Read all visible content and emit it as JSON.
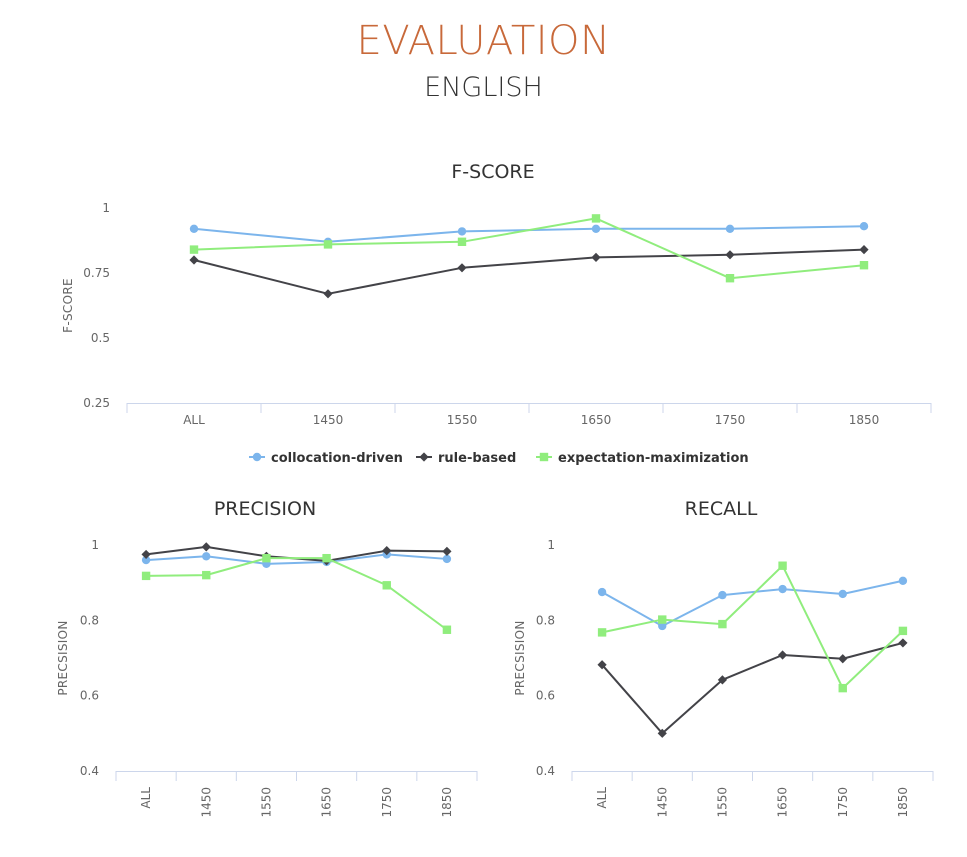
{
  "header": {
    "title": "EVALUATION",
    "subtitle": "ENGLISH"
  },
  "legend": [
    {
      "name": "collocation-driven",
      "color": "#7cb5ec",
      "marker": "circle"
    },
    {
      "name": "rule-based",
      "color": "#434348",
      "marker": "diamond"
    },
    {
      "name": "expectation-maximization",
      "color": "#90ed7d",
      "marker": "square"
    }
  ],
  "chart_data": [
    {
      "type": "line",
      "title": "F-SCORE",
      "ylabel": "F-SCORE",
      "xlabel": "",
      "categories": [
        "ALL",
        "1450",
        "1550",
        "1650",
        "1750",
        "1850"
      ],
      "ylim": [
        0.25,
        1
      ],
      "yticks": [
        0.25,
        0.5,
        0.75,
        1
      ],
      "ytick_labels": [
        "0.25",
        "0.5",
        "0.75",
        "1"
      ],
      "grid": false,
      "legend": "bottom",
      "series": [
        {
          "name": "collocation-driven",
          "values": [
            0.92,
            0.87,
            0.91,
            0.92,
            0.92,
            0.93
          ]
        },
        {
          "name": "rule-based",
          "values": [
            0.8,
            0.67,
            0.77,
            0.81,
            0.82,
            0.84
          ]
        },
        {
          "name": "expectation-maximization",
          "values": [
            0.84,
            0.86,
            0.87,
            0.96,
            0.73,
            0.78
          ]
        }
      ]
    },
    {
      "type": "line",
      "title": "PRECISION",
      "ylabel": "PRECSISION",
      "xlabel": "",
      "categories": [
        "ALL",
        "1450",
        "1550",
        "1650",
        "1750",
        "1850"
      ],
      "ylim": [
        0.4,
        1
      ],
      "yticks": [
        0.4,
        0.6,
        0.8,
        1
      ],
      "ytick_labels": [
        "0.4",
        "0.6",
        "0.8",
        "1"
      ],
      "grid": false,
      "series": [
        {
          "name": "collocation-driven",
          "values": [
            0.96,
            0.97,
            0.95,
            0.955,
            0.975,
            0.963
          ]
        },
        {
          "name": "rule-based",
          "values": [
            0.975,
            0.995,
            0.97,
            0.958,
            0.985,
            0.983
          ]
        },
        {
          "name": "expectation-maximization",
          "values": [
            0.918,
            0.92,
            0.965,
            0.965,
            0.893,
            0.775
          ]
        }
      ]
    },
    {
      "type": "line",
      "title": "RECALL",
      "ylabel": "PRECSISION",
      "xlabel": "",
      "categories": [
        "ALL",
        "1450",
        "1550",
        "1650",
        "1750",
        "1850"
      ],
      "ylim": [
        0.4,
        1
      ],
      "yticks": [
        0.4,
        0.6,
        0.8,
        1
      ],
      "ytick_labels": [
        "0.4",
        "0.6",
        "0.8",
        "1"
      ],
      "grid": false,
      "series": [
        {
          "name": "collocation-driven",
          "values": [
            0.875,
            0.785,
            0.867,
            0.883,
            0.87,
            0.905
          ]
        },
        {
          "name": "rule-based",
          "values": [
            0.682,
            0.5,
            0.642,
            0.708,
            0.698,
            0.74
          ]
        },
        {
          "name": "expectation-maximization",
          "values": [
            0.768,
            0.802,
            0.79,
            0.945,
            0.62,
            0.772
          ]
        }
      ]
    }
  ]
}
